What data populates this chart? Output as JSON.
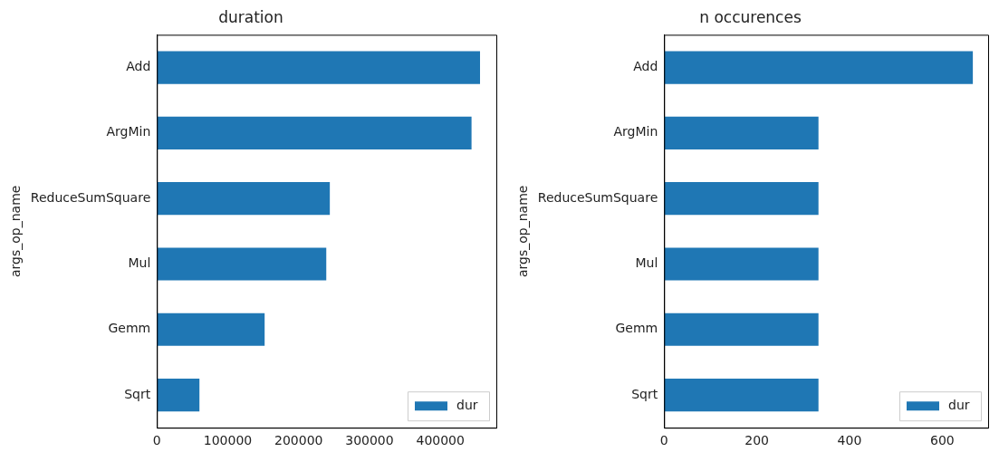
{
  "chart_data": [
    {
      "type": "bar",
      "orientation": "horizontal",
      "title": "duration",
      "ylabel": "args_op_name",
      "categories": [
        "Add",
        "ArgMin",
        "ReduceSumSquare",
        "Mul",
        "Gemm",
        "Sqrt"
      ],
      "series": [
        {
          "name": "dur",
          "color": "#1f77b4",
          "values": [
            456000,
            444000,
            244000,
            239000,
            152000,
            60000
          ]
        }
      ],
      "xlim": [
        0,
        479000
      ],
      "xticks": [
        0,
        100000,
        200000,
        300000,
        400000
      ],
      "legend": "bottom right",
      "grid": false
    },
    {
      "type": "bar",
      "orientation": "horizontal",
      "title": "n occurences",
      "ylabel": "args_op_name",
      "categories": [
        "Add",
        "ArgMin",
        "ReduceSumSquare",
        "Mul",
        "Gemm",
        "Sqrt"
      ],
      "series": [
        {
          "name": "dur",
          "color": "#1f77b4",
          "values": [
            666,
            333,
            333,
            333,
            333,
            333
          ]
        }
      ],
      "xlim": [
        0,
        699
      ],
      "xticks": [
        0,
        200,
        400,
        600
      ],
      "legend": "bottom right",
      "grid": false
    }
  ]
}
